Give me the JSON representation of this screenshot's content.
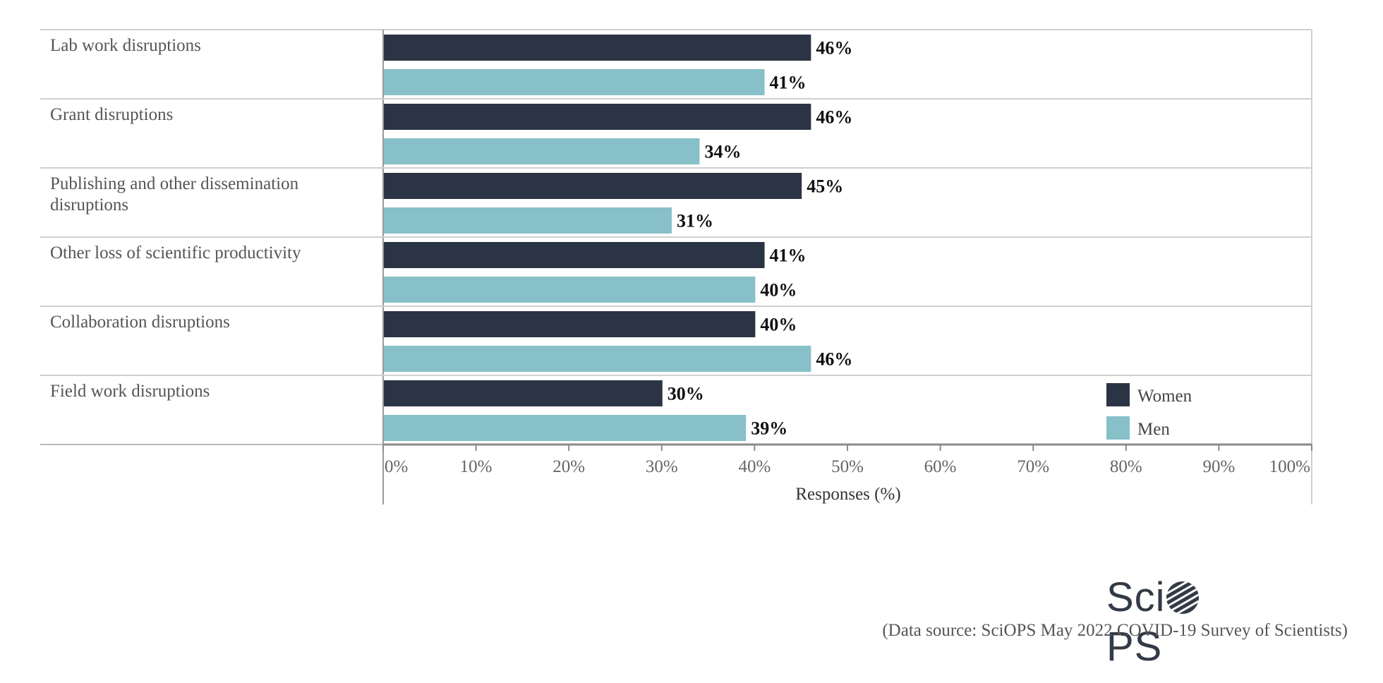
{
  "chart_data": {
    "type": "bar",
    "orientation": "horizontal",
    "categories": [
      [
        "Lab work disruptions"
      ],
      [
        "Grant disruptions"
      ],
      [
        "Publishing and other dissemination",
        "disruptions"
      ],
      [
        "Other loss of scientific productivity"
      ],
      [
        "Collaboration disruptions"
      ],
      [
        "Field work disruptions"
      ]
    ],
    "series": [
      {
        "name": "Women",
        "color": "#2b3444",
        "values": [
          46,
          46,
          45,
          41,
          40,
          30
        ]
      },
      {
        "name": "Men",
        "color": "#87c0c8",
        "values": [
          41,
          34,
          31,
          40,
          46,
          39
        ]
      }
    ],
    "value_suffix": "%",
    "xlim": [
      0,
      100
    ],
    "xticks": [
      "0%",
      "10%",
      "20%",
      "30%",
      "40%",
      "50%",
      "60%",
      "70%",
      "80%",
      "90%",
      "100%"
    ],
    "xlabel": "Responses (%)",
    "legend_position": "bottom-right"
  },
  "logo_text": "SciOPS",
  "source_text": "(Data source: SciOPS May 2022 COVID-19 Survey of Scientists)"
}
